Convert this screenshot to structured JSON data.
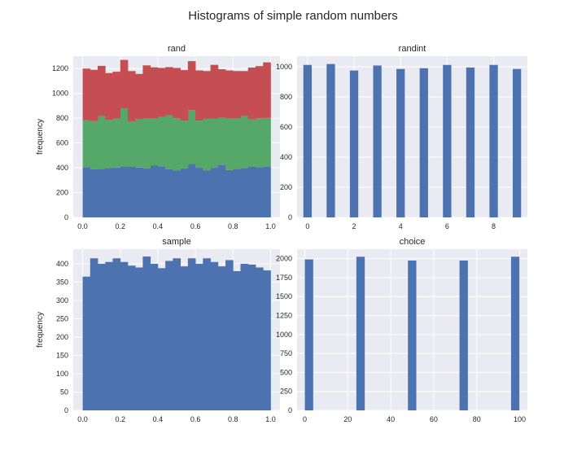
{
  "suptitle": "Histograms of simple random numbers",
  "chart_data": [
    {
      "type": "bar",
      "stacked": true,
      "title": "rand",
      "ylabel": "frequency",
      "xlabel": "",
      "bin_edges_start": 0.0,
      "bin_edges_end": 1.0,
      "bins": 25,
      "xlim": [
        -0.05,
        1.05
      ],
      "ylim": [
        0,
        1300
      ],
      "xticks": [
        0.0,
        0.2,
        0.4,
        0.6,
        0.8,
        1.0
      ],
      "xtick_labels": [
        "0.0",
        "0.2",
        "0.4",
        "0.6",
        "0.8",
        "1.0"
      ],
      "yticks": [
        0,
        200,
        400,
        600,
        800,
        1000,
        1200
      ],
      "grid": true,
      "series": [
        {
          "color": "#4c72b0",
          "values": [
            405,
            388,
            392,
            398,
            402,
            410,
            410,
            402,
            396,
            420,
            412,
            388,
            380,
            395,
            430,
            400,
            380,
            400,
            425,
            382,
            392,
            398,
            410,
            405,
            412
          ]
        },
        {
          "color": "#55a868",
          "values": [
            380,
            388,
            425,
            388,
            395,
            470,
            365,
            390,
            405,
            378,
            398,
            435,
            420,
            385,
            435,
            380,
            415,
            395,
            380,
            415,
            405,
            420,
            380,
            395,
            390
          ]
        },
        {
          "color": "#c44e52",
          "values": [
            415,
            414,
            405,
            378,
            378,
            390,
            405,
            365,
            425,
            412,
            395,
            389,
            405,
            408,
            395,
            405,
            385,
            435,
            390,
            388,
            383,
            362,
            418,
            420,
            448
          ]
        }
      ]
    },
    {
      "type": "bar",
      "title": "randint",
      "xlabel": "",
      "ylabel": "",
      "xlim": [
        -0.45,
        9.45
      ],
      "ylim": [
        0,
        1070
      ],
      "xticks": [
        0,
        2,
        4,
        6,
        8
      ],
      "xtick_labels": [
        "0",
        "2",
        "4",
        "6",
        "8"
      ],
      "yticks": [
        0,
        200,
        400,
        600,
        800,
        1000
      ],
      "bar_width": 0.36,
      "grid": true,
      "series": [
        {
          "color": "#4c72b0",
          "x": [
            0,
            1,
            2,
            3,
            4,
            5,
            6,
            7,
            8,
            9
          ],
          "values": [
            1012,
            1018,
            975,
            1008,
            985,
            990,
            1012,
            995,
            1012,
            985
          ]
        }
      ]
    },
    {
      "type": "bar",
      "title": "sample",
      "ylabel": "frequency",
      "xlabel": "",
      "bin_edges_start": 0.0,
      "bin_edges_end": 1.0,
      "bins": 25,
      "xlim": [
        -0.05,
        1.05
      ],
      "ylim": [
        0,
        440
      ],
      "xticks": [
        0.0,
        0.2,
        0.4,
        0.6,
        0.8,
        1.0
      ],
      "xtick_labels": [
        "0.0",
        "0.2",
        "0.4",
        "0.6",
        "0.8",
        "1.0"
      ],
      "yticks": [
        0,
        50,
        100,
        150,
        200,
        250,
        300,
        350,
        400
      ],
      "grid": true,
      "series": [
        {
          "color": "#4c72b0",
          "values": [
            365,
            415,
            400,
            405,
            415,
            405,
            395,
            390,
            420,
            400,
            388,
            408,
            415,
            393,
            415,
            400,
            415,
            405,
            393,
            410,
            380,
            400,
            398,
            390,
            382
          ]
        }
      ]
    },
    {
      "type": "bar",
      "title": "choice",
      "xlabel": "",
      "ylabel": "",
      "xlim": [
        -3.6,
        103.6
      ],
      "ylim": [
        0,
        2125
      ],
      "xticks": [
        0,
        20,
        40,
        60,
        80,
        100
      ],
      "xtick_labels": [
        "0",
        "20",
        "40",
        "60",
        "80",
        "100"
      ],
      "yticks": [
        0,
        250,
        500,
        750,
        1000,
        1250,
        1500,
        1750,
        2000
      ],
      "bar_width": 3.9,
      "grid": true,
      "series": [
        {
          "color": "#4c72b0",
          "x": [
            1.95,
            25.95,
            49.95,
            73.95,
            97.95
          ],
          "values": [
            1990,
            2025,
            1975,
            1975,
            2025
          ]
        }
      ]
    }
  ]
}
